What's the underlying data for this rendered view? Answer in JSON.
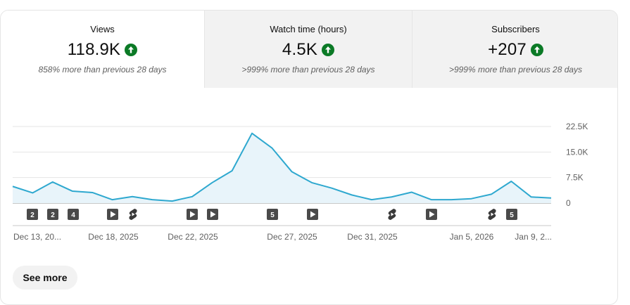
{
  "tabs": [
    {
      "label": "Views",
      "value": "118.9K",
      "comparison": "858% more than previous 28 days"
    },
    {
      "label": "Watch time (hours)",
      "value": "4.5K",
      "comparison": ">999% more than previous 28 days"
    },
    {
      "label": "Subscribers",
      "value": "+207",
      "comparison": ">999% more than previous 28 days"
    }
  ],
  "colors": {
    "line": "#2ea8cf",
    "fill": "#e8f4fa",
    "positive": "#0b7a26",
    "marker": "#606060"
  },
  "chart_data": {
    "type": "area",
    "y_ticks": [
      "22.5K",
      "15.0K",
      "7.5K",
      "0"
    ],
    "ylim": [
      0,
      22500
    ],
    "x_tick_labels": [
      "Dec 13, 20...",
      "Dec 18, 2025",
      "Dec 22, 2025",
      "Dec 27, 2025",
      "Dec 31, 2025",
      "Jan 5, 2026",
      "Jan 9, 2..."
    ],
    "series": [
      {
        "values": [
          4900,
          3000,
          6200,
          3500,
          3100,
          1000,
          1900,
          1000,
          600,
          1900,
          6000,
          9500,
          20500,
          16200,
          9200,
          6000,
          4400,
          2400,
          1000,
          1800,
          3200,
          1000,
          1000,
          1300,
          2600,
          6400,
          1800,
          1500
        ]
      }
    ],
    "markers": [
      "2",
      "2",
      "4",
      "play",
      "shorts",
      "play",
      "play",
      "5",
      "play",
      "shorts",
      "play",
      "shorts",
      "5"
    ]
  },
  "see_more": "See more"
}
